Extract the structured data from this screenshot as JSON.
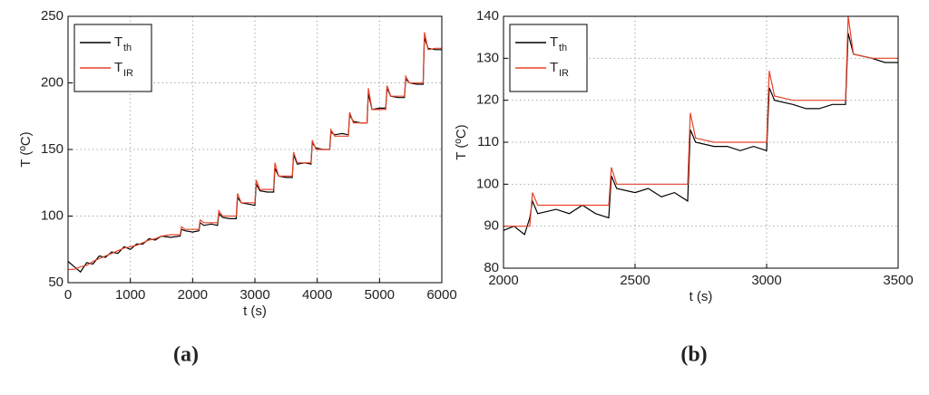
{
  "chart_data": [
    {
      "type": "line",
      "caption": "(a)",
      "xlabel": "t (s)",
      "ylabel": "T (ºC)",
      "xlim": [
        0,
        6000
      ],
      "xticks": [
        0,
        1000,
        2000,
        3000,
        4000,
        5000,
        6000
      ],
      "ylim": [
        50,
        250
      ],
      "yticks": [
        50,
        100,
        150,
        200,
        250
      ],
      "grid": true,
      "legend": "upper left",
      "x": [
        0,
        100,
        200,
        300,
        400,
        500,
        600,
        700,
        800,
        900,
        1000,
        1100,
        1200,
        1300,
        1400,
        1500,
        1650,
        1800,
        1820,
        1880,
        2000,
        2100,
        2120,
        2180,
        2300,
        2400,
        2420,
        2480,
        2600,
        2700,
        2720,
        2780,
        2900,
        3000,
        3020,
        3080,
        3200,
        3300,
        3320,
        3380,
        3500,
        3600,
        3620,
        3680,
        3800,
        3900,
        3920,
        3980,
        4100,
        4200,
        4220,
        4280,
        4400,
        4500,
        4520,
        4580,
        4700,
        4800,
        4820,
        4880,
        5000,
        5100,
        5120,
        5180,
        5300,
        5400,
        5420,
        5480,
        5600,
        5700,
        5720,
        5780,
        5900,
        6000
      ],
      "series": [
        {
          "name": "T",
          "subscript": "th",
          "color": "#000000",
          "values": [
            66,
            62,
            58,
            65,
            64,
            70,
            69,
            73,
            72,
            77,
            75,
            79,
            79,
            83,
            82,
            85,
            84,
            85,
            90,
            89,
            88,
            89,
            95,
            93,
            94,
            93,
            102,
            99,
            98,
            98,
            114,
            110,
            109,
            108,
            124,
            119,
            118,
            118,
            136,
            130,
            129,
            129,
            146,
            139,
            140,
            139,
            155,
            151,
            150,
            150,
            163,
            161,
            162,
            161,
            176,
            171,
            170,
            170,
            192,
            180,
            181,
            181,
            196,
            190,
            189,
            189,
            203,
            200,
            199,
            199,
            234,
            226,
            225,
            225
          ]
        },
        {
          "name": "T",
          "subscript": "IR",
          "color": "#e8432a",
          "values": [
            60,
            60,
            62,
            63,
            66,
            68,
            70,
            72,
            74,
            76,
            77,
            78,
            80,
            82,
            83,
            85,
            86,
            86,
            92,
            90,
            90,
            90,
            97,
            95,
            95,
            95,
            104,
            100,
            100,
            100,
            117,
            110,
            110,
            110,
            127,
            120,
            120,
            120,
            140,
            130,
            130,
            130,
            148,
            140,
            140,
            140,
            157,
            150,
            150,
            150,
            165,
            160,
            160,
            160,
            178,
            170,
            170,
            170,
            196,
            180,
            180,
            180,
            198,
            190,
            190,
            190,
            205,
            200,
            200,
            200,
            238,
            225,
            226,
            226
          ]
        }
      ]
    },
    {
      "type": "line",
      "caption": "(b)",
      "xlabel": "t (s)",
      "ylabel": "T (ºC)",
      "xlim": [
        2000,
        3500
      ],
      "xticks": [
        2000,
        2500,
        3000,
        3500
      ],
      "ylim": [
        80,
        140
      ],
      "yticks": [
        80,
        90,
        100,
        110,
        120,
        130,
        140
      ],
      "grid": true,
      "legend": "upper left",
      "x": [
        2000,
        2040,
        2080,
        2100,
        2110,
        2130,
        2200,
        2250,
        2300,
        2350,
        2400,
        2410,
        2430,
        2500,
        2550,
        2600,
        2650,
        2700,
        2710,
        2730,
        2800,
        2850,
        2900,
        2950,
        3000,
        3010,
        3030,
        3100,
        3150,
        3200,
        3250,
        3300,
        3310,
        3330,
        3400,
        3450,
        3500
      ],
      "series": [
        {
          "name": "T",
          "subscript": "th",
          "color": "#000000",
          "values": [
            89,
            90,
            88,
            92,
            96,
            93,
            94,
            93,
            95,
            93,
            92,
            102,
            99,
            98,
            99,
            97,
            98,
            96,
            113,
            110,
            109,
            109,
            108,
            109,
            108,
            123,
            120,
            119,
            118,
            118,
            119,
            119,
            136,
            131,
            130,
            129,
            129
          ]
        },
        {
          "name": "T",
          "subscript": "IR",
          "color": "#e8432a",
          "values": [
            90,
            90,
            90,
            90,
            98,
            95,
            95,
            95,
            95,
            95,
            95,
            104,
            100,
            100,
            100,
            100,
            100,
            100,
            117,
            111,
            110,
            110,
            110,
            110,
            110,
            127,
            121,
            120,
            120,
            120,
            120,
            120,
            140,
            131,
            130,
            130,
            130
          ]
        }
      ]
    }
  ]
}
